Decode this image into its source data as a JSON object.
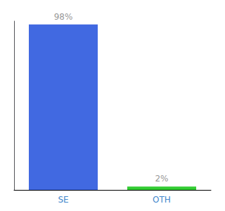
{
  "chart_data": {
    "type": "bar",
    "categories": [
      "SE",
      "OTH"
    ],
    "values": [
      98,
      2
    ],
    "value_labels": [
      "98%",
      "2%"
    ],
    "colors": [
      "#4169e1",
      "#33cc33"
    ],
    "ylim": [
      0,
      100
    ],
    "grid": false,
    "data_labels": true,
    "tick_labels": "x"
  }
}
